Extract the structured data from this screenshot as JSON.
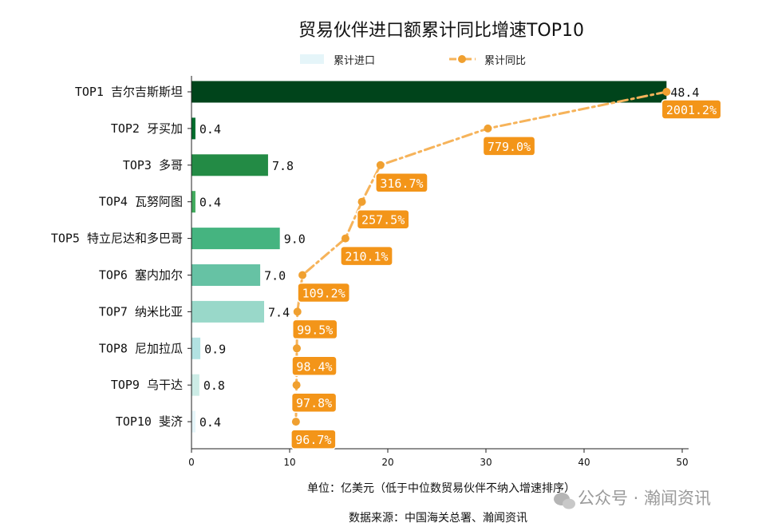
{
  "chart_data": {
    "type": "bar",
    "title": "贸易伙伴进口额累计同比增速TOP10",
    "xlabel": "单位：亿美元（低于中位数贸易伙伴不纳入增速排序）",
    "source": "数据来源：中国海关总署、瀚闻资讯",
    "xlim": [
      0,
      50
    ],
    "xticks": [
      0,
      10,
      20,
      30,
      40,
      50
    ],
    "legend": {
      "position": "top-center",
      "entries": [
        "累计进口",
        "累计同比"
      ]
    },
    "categories": [
      "TOP1 吉尔吉斯斯坦",
      "TOP2 牙买加",
      "TOP3 多哥",
      "TOP4 瓦努阿图",
      "TOP5 特立尼达和多巴哥",
      "TOP6 塞内加尔",
      "TOP7 纳米比亚",
      "TOP8 尼加拉瓜",
      "TOP9 乌干达",
      "TOP10 斐济"
    ],
    "series": [
      {
        "name": "累计进口",
        "values": [
          48.4,
          0.4,
          7.8,
          0.4,
          9.0,
          7.0,
          7.4,
          0.9,
          0.8,
          0.4
        ],
        "value_labels": [
          "48.4",
          "0.4",
          "7.8",
          "0.4",
          "9.0",
          "7.0",
          "7.4",
          "0.9",
          "0.8",
          "0.4"
        ],
        "colors": [
          "#00441b",
          "#006d2c",
          "#238b45",
          "#41ab5d",
          "#45b480",
          "#66c2a4",
          "#99d8c9",
          "#b2e2e2",
          "#ccece6",
          "#e5f5f9"
        ]
      },
      {
        "name": "累计同比",
        "values": [
          2001.2,
          779.0,
          316.7,
          257.5,
          210.1,
          109.2,
          99.5,
          98.4,
          97.8,
          96.7
        ],
        "value_labels": [
          "2001.2%",
          "779.0%",
          "316.7%",
          "257.5%",
          "210.1%",
          "109.2%",
          "99.5%",
          "98.4%",
          "97.8%",
          "96.7%"
        ],
        "color": "#f39c12",
        "line_style": "dash-dot"
      }
    ]
  },
  "watermark": "公众号 · 瀚闻资讯",
  "colors": {
    "line": "#f6b35a",
    "marker": "#f0a030",
    "label_box": "#f39519",
    "legend_bar": "#e5f5f9"
  }
}
